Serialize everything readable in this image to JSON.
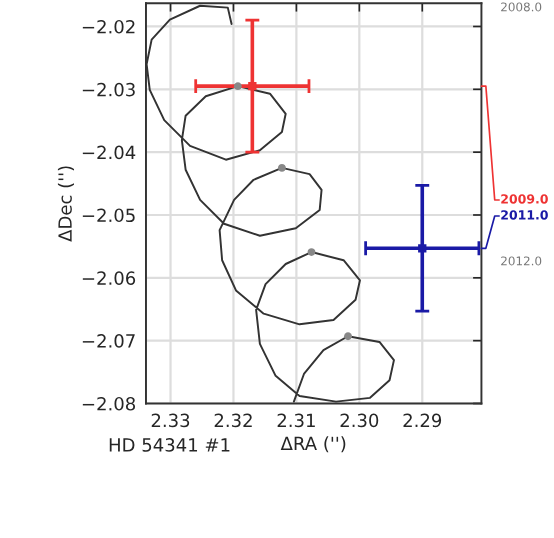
{
  "chart_data": {
    "type": "line",
    "title": "HD 54341 #1",
    "xlabel": "ΔRA ('')",
    "ylabel": "ΔDec ('')",
    "xlim": [
      2.3339,
      2.2806
    ],
    "ylim": [
      -2.08,
      -2.0163
    ],
    "xticks": [
      2.33,
      2.32,
      2.31,
      {
        "value": 2.3,
        "label": "2.30"
      },
      2.29
    ],
    "yticks": [
      {
        "value": -2.02,
        "label": "−2.02"
      },
      {
        "value": -2.03,
        "label": "−2.03"
      },
      {
        "value": -2.04,
        "label": "−2.04"
      },
      {
        "value": -2.05,
        "label": "−2.05"
      },
      {
        "value": -2.06,
        "label": "−2.06"
      },
      {
        "value": -2.07,
        "label": "−2.07"
      },
      {
        "value": -2.08,
        "label": "−2.08"
      }
    ],
    "grid": true,
    "annotations": [
      "2008.0",
      "2012.0"
    ],
    "series": [
      {
        "color": "#333333",
        "marker": "none",
        "x": [
          2.3203,
          2.3209,
          2.3253,
          2.3301,
          2.333,
          2.3338,
          2.3333,
          2.331,
          2.3269,
          2.3212,
          2.3158,
          2.3123,
          2.3117,
          2.3142,
          2.3193,
          2.3244,
          2.3276,
          2.3282,
          2.3276,
          2.3253,
          2.3215,
          2.3158,
          2.3101,
          2.3063,
          2.306,
          2.3079,
          2.3123,
          2.3168,
          2.3199,
          2.3222,
          2.3218,
          2.3196,
          2.3152,
          2.3095,
          2.3041,
          2.3006,
          2.2999,
          2.3025,
          2.3076,
          2.3117,
          2.3149,
          2.3164,
          2.3158,
          2.3133,
          2.3095,
          2.3037,
          2.2983,
          2.2952,
          2.2945,
          2.2968,
          2.3018,
          2.3057,
          2.3088,
          2.3104
        ],
        "values": [
          -2.0196,
          -2.017,
          -2.0167,
          -2.0189,
          -2.0221,
          -2.026,
          -2.0301,
          -2.0349,
          -2.039,
          -2.0412,
          -2.0397,
          -2.0368,
          -2.0339,
          -2.0307,
          -2.0295,
          -2.0311,
          -2.0342,
          -2.0381,
          -2.0428,
          -2.0476,
          -2.0514,
          -2.0533,
          -2.0521,
          -2.0492,
          -2.046,
          -2.0435,
          -2.0425,
          -2.0444,
          -2.0476,
          -2.0524,
          -2.0572,
          -2.062,
          -2.0657,
          -2.0674,
          -2.0667,
          -2.0635,
          -2.0604,
          -2.0572,
          -2.0559,
          -2.0578,
          -2.061,
          -2.0651,
          -2.0705,
          -2.0756,
          -2.0788,
          -2.0797,
          -2.0791,
          -2.0763,
          -2.0731,
          -2.0702,
          -2.0693,
          -2.0715,
          -2.0753,
          -2.0797
        ]
      },
      {
        "type": "scatter",
        "color": "#888888",
        "marker": "circle",
        "x": [
          2.3193,
          2.3123,
          2.3076,
          2.3018
        ],
        "values": [
          -2.0295,
          -2.0425,
          -2.0559,
          -2.0693
        ]
      },
      {
        "type": "scatter",
        "name": "2009.0",
        "color": "#ee3333",
        "marker": "square",
        "x": [
          2.317
        ],
        "values": [
          -2.0295
        ],
        "errors": [
          0.0105
        ],
        "xerrors": [
          0.009
        ]
      },
      {
        "type": "scatter",
        "name": "2011.0",
        "color": "#1a1aa6",
        "marker": "square",
        "x": [
          2.29
        ],
        "values": [
          -2.0553
        ],
        "errors": [
          0.01
        ],
        "xerrors": [
          0.009
        ]
      }
    ]
  }
}
